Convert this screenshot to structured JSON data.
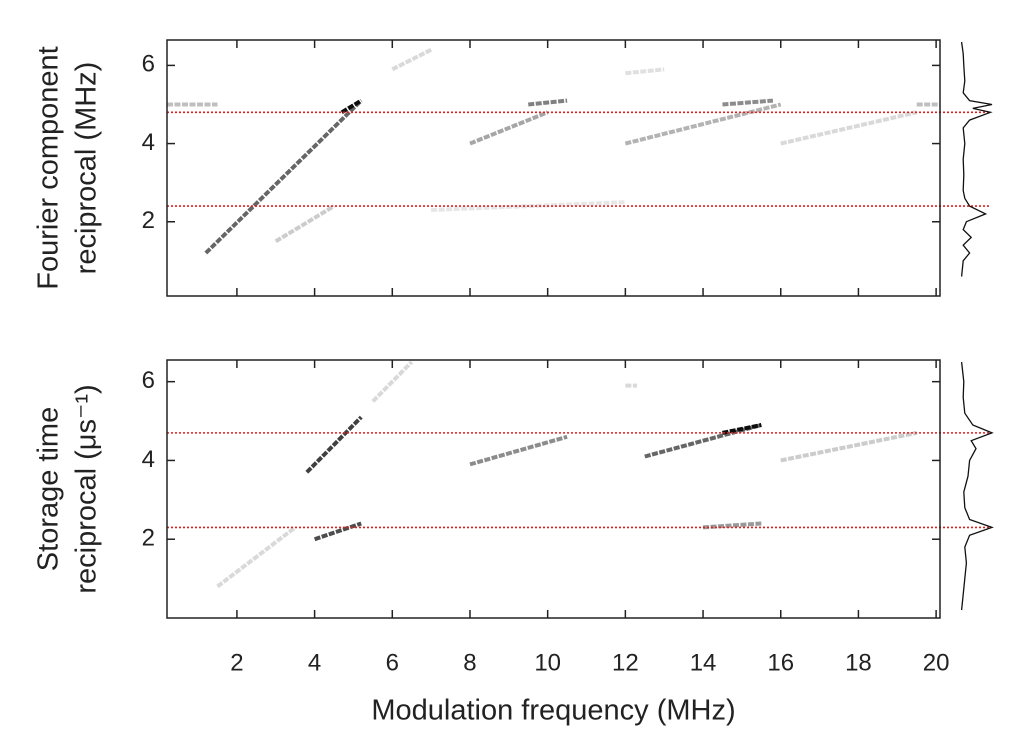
{
  "chart_data": [
    {
      "type": "heatmap",
      "ylabel": [
        "Fourier component",
        "reciprocal (MHz)"
      ],
      "xlim": [
        0.2,
        20.1
      ],
      "ylim": [
        0.1,
        6.65
      ],
      "xticks": [
        2,
        4,
        6,
        8,
        10,
        12,
        14,
        16,
        18,
        20
      ],
      "yticks": [
        2,
        4,
        6
      ],
      "show_xtick_labels": false,
      "hlines": [
        4.8,
        2.4
      ],
      "hline_color": "#e02020",
      "streaks": [
        {
          "x": [
            1.2,
            5.2
          ],
          "y": [
            1.2,
            5.1
          ],
          "intensity": 0.6
        },
        {
          "x": [
            4.7,
            5.2
          ],
          "y": [
            4.8,
            5.1
          ],
          "intensity": 0.95
        },
        {
          "x": [
            3.0,
            4.5
          ],
          "y": [
            1.5,
            2.4
          ],
          "intensity": 0.2
        },
        {
          "x": [
            6.0,
            7.0
          ],
          "y": [
            5.9,
            6.4
          ],
          "intensity": 0.15
        },
        {
          "x": [
            8.0,
            10.0
          ],
          "y": [
            4.0,
            4.8
          ],
          "intensity": 0.35
        },
        {
          "x": [
            9.5,
            10.5
          ],
          "y": [
            5.0,
            5.1
          ],
          "intensity": 0.5
        },
        {
          "x": [
            12.0,
            16.0
          ],
          "y": [
            4.0,
            5.0
          ],
          "intensity": 0.3
        },
        {
          "x": [
            14.5,
            15.8
          ],
          "y": [
            5.0,
            5.1
          ],
          "intensity": 0.45
        },
        {
          "x": [
            16.0,
            19.5
          ],
          "y": [
            4.0,
            4.8
          ],
          "intensity": 0.15
        },
        {
          "x": [
            0.2,
            1.5
          ],
          "y": [
            5.0,
            5.0
          ],
          "intensity": 0.25
        },
        {
          "x": [
            19.5,
            20.1
          ],
          "y": [
            5.0,
            5.0
          ],
          "intensity": 0.25
        },
        {
          "x": [
            7.0,
            12.0
          ],
          "y": [
            2.3,
            2.5
          ],
          "intensity": 0.1
        },
        {
          "x": [
            12.0,
            13.0
          ],
          "y": [
            5.8,
            5.9
          ],
          "intensity": 0.12
        }
      ],
      "profile": {
        "y": [
          0.6,
          1.0,
          1.2,
          1.4,
          1.6,
          1.8,
          2.0,
          2.2,
          2.4,
          2.6,
          2.8,
          3.2,
          3.6,
          4.0,
          4.4,
          4.6,
          4.8,
          4.9,
          5.0,
          5.1,
          5.3,
          5.6,
          6.0,
          6.3,
          6.6
        ],
        "values": [
          0.05,
          0.1,
          0.3,
          0.1,
          0.35,
          0.1,
          0.2,
          0.8,
          0.3,
          0.15,
          0.1,
          0.12,
          0.1,
          0.15,
          0.1,
          0.3,
          0.95,
          0.4,
          1,
          0.3,
          0.1,
          0.15,
          0.12,
          0.1,
          0.05
        ]
      }
    },
    {
      "type": "heatmap",
      "ylabel": [
        "Storage time",
        "reciprocal (μs⁻¹)"
      ],
      "xlabel": "Modulation frequency (MHz)",
      "xlim": [
        0.2,
        20.1
      ],
      "ylim": [
        0,
        6.55
      ],
      "xticks": [
        2,
        4,
        6,
        8,
        10,
        12,
        14,
        16,
        18,
        20
      ],
      "yticks": [
        2,
        4,
        6
      ],
      "show_xtick_labels": true,
      "hlines": [
        4.7,
        2.3
      ],
      "hline_color": "#e02020",
      "streaks": [
        {
          "x": [
            3.8,
            5.2
          ],
          "y": [
            3.7,
            5.1
          ],
          "intensity": 0.75
        },
        {
          "x": [
            4.0,
            5.2
          ],
          "y": [
            2.0,
            2.4
          ],
          "intensity": 0.7
        },
        {
          "x": [
            5.5,
            6.5
          ],
          "y": [
            5.5,
            6.5
          ],
          "intensity": 0.15
        },
        {
          "x": [
            8.0,
            10.5
          ],
          "y": [
            3.9,
            4.6
          ],
          "intensity": 0.45
        },
        {
          "x": [
            12.5,
            15.5
          ],
          "y": [
            4.1,
            4.9
          ],
          "intensity": 0.6
        },
        {
          "x": [
            14.5,
            15.5
          ],
          "y": [
            4.7,
            4.9
          ],
          "intensity": 0.95
        },
        {
          "x": [
            16.0,
            19.5
          ],
          "y": [
            4.0,
            4.7
          ],
          "intensity": 0.2
        },
        {
          "x": [
            14.0,
            15.5
          ],
          "y": [
            2.3,
            2.4
          ],
          "intensity": 0.4
        },
        {
          "x": [
            1.5,
            3.5
          ],
          "y": [
            0.8,
            2.3
          ],
          "intensity": 0.15
        },
        {
          "x": [
            12.0,
            12.3
          ],
          "y": [
            5.9,
            5.9
          ],
          "intensity": 0.15
        }
      ],
      "profile": {
        "y": [
          0.2,
          0.6,
          1.0,
          1.4,
          1.8,
          2.1,
          2.3,
          2.5,
          2.8,
          3.2,
          3.6,
          4.0,
          4.3,
          4.5,
          4.7,
          4.9,
          5.2,
          5.6,
          6.0,
          6.5
        ],
        "values": [
          0.05,
          0.1,
          0.15,
          0.2,
          0.15,
          0.3,
          1,
          0.3,
          0.15,
          0.12,
          0.25,
          0.3,
          0.5,
          0.35,
          1,
          0.4,
          0.15,
          0.1,
          0.12,
          0.05
        ]
      }
    }
  ]
}
